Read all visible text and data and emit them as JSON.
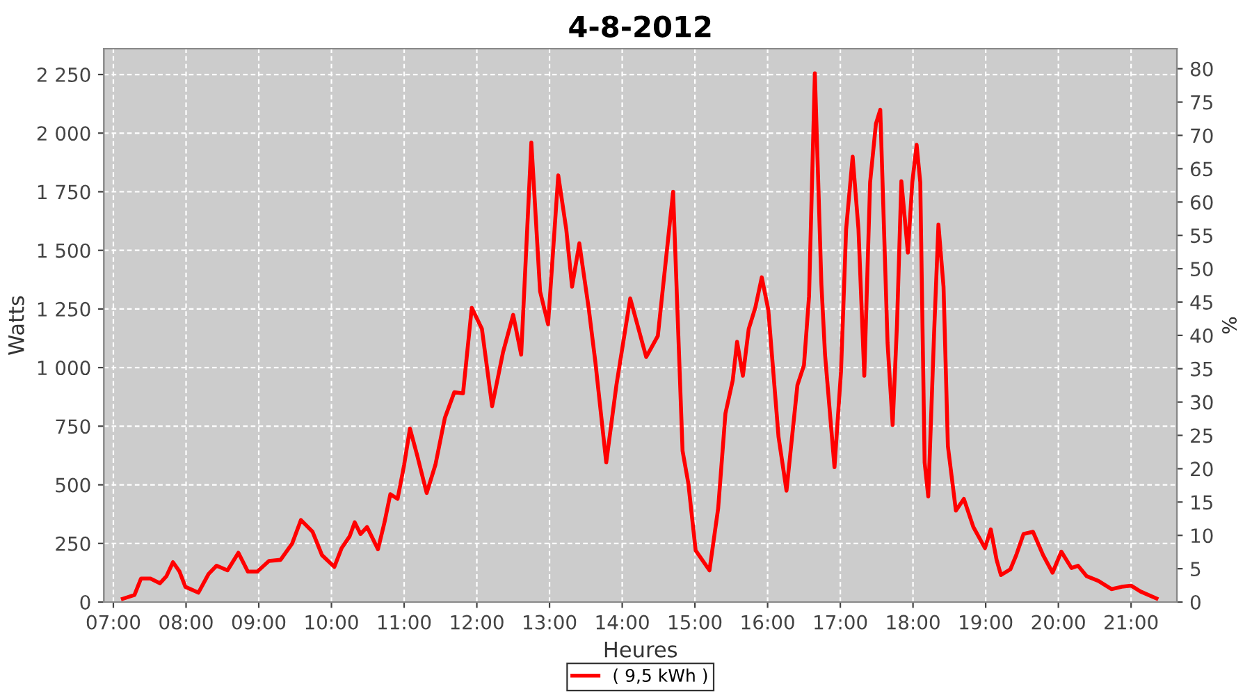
{
  "chart_data": {
    "type": "line",
    "title": "4-8-2012",
    "xlabel": "Heures",
    "ylabel": "Watts",
    "y2label": "%",
    "series": [
      {
        "name": "( 9,5 kWh )",
        "color": "#ff0000",
        "x": [
          7.13,
          7.29,
          7.38,
          7.51,
          7.64,
          7.73,
          7.82,
          7.91,
          7.99,
          8.17,
          8.31,
          8.42,
          8.57,
          8.72,
          8.85,
          8.98,
          9.14,
          9.3,
          9.46,
          9.58,
          9.74,
          9.87,
          10.04,
          10.14,
          10.25,
          10.32,
          10.4,
          10.49,
          10.64,
          10.73,
          10.81,
          10.91,
          11.0,
          11.08,
          11.18,
          11.31,
          11.43,
          11.56,
          11.69,
          11.81,
          11.93,
          12.07,
          12.21,
          12.36,
          12.5,
          12.61,
          12.75,
          12.87,
          12.98,
          13.12,
          13.23,
          13.31,
          13.41,
          13.54,
          13.63,
          13.78,
          13.92,
          14.11,
          14.33,
          14.49,
          14.7,
          14.83,
          14.91,
          15.01,
          15.2,
          15.32,
          15.42,
          15.52,
          15.58,
          15.66,
          15.74,
          15.83,
          15.92,
          16.01,
          16.15,
          16.26,
          16.41,
          16.5,
          16.57,
          16.65,
          16.74,
          16.79,
          16.92,
          17.01,
          17.08,
          17.17,
          17.25,
          17.33,
          17.41,
          17.49,
          17.55,
          17.65,
          17.72,
          17.78,
          17.84,
          17.93,
          17.99,
          18.05,
          18.1,
          18.16,
          18.21,
          18.29,
          18.35,
          18.42,
          18.48,
          18.59,
          18.7,
          18.83,
          18.99,
          19.07,
          19.15,
          19.21,
          19.34,
          19.42,
          19.52,
          19.65,
          19.79,
          19.92,
          20.04,
          20.18,
          20.27,
          20.39,
          20.55,
          20.73,
          20.87,
          21.0,
          21.13,
          21.35
        ],
        "values": [
          14,
          30,
          100,
          100,
          80,
          110,
          170,
          130,
          65,
          40,
          120,
          155,
          135,
          210,
          130,
          130,
          175,
          180,
          250,
          350,
          300,
          200,
          150,
          230,
          280,
          340,
          290,
          320,
          225,
          340,
          460,
          440,
          585,
          740,
          625,
          465,
          585,
          785,
          895,
          890,
          1255,
          1165,
          835,
          1065,
          1225,
          1055,
          1960,
          1325,
          1185,
          1820,
          1590,
          1345,
          1530,
          1250,
          1025,
          595,
          925,
          1295,
          1045,
          1135,
          1750,
          645,
          505,
          220,
          135,
          400,
          805,
          945,
          1110,
          965,
          1165,
          1255,
          1385,
          1245,
          705,
          475,
          925,
          1010,
          1305,
          2255,
          1355,
          1055,
          575,
          985,
          1590,
          1900,
          1590,
          965,
          1790,
          2040,
          2100,
          1105,
          755,
          1185,
          1795,
          1490,
          1790,
          1950,
          1790,
          595,
          450,
          1145,
          1610,
          1345,
          665,
          390,
          440,
          320,
          230,
          310,
          180,
          115,
          140,
          200,
          290,
          300,
          200,
          125,
          215,
          145,
          155,
          110,
          90,
          55,
          65,
          70,
          45,
          15
        ]
      }
    ],
    "xlim": [
      6.87,
      21.63
    ],
    "xticks": [
      {
        "value": 7,
        "label": "07:00"
      },
      {
        "value": 8,
        "label": "08:00"
      },
      {
        "value": 9,
        "label": "09:00"
      },
      {
        "value": 10,
        "label": "10:00"
      },
      {
        "value": 11,
        "label": "11:00"
      },
      {
        "value": 12,
        "label": "12:00"
      },
      {
        "value": 13,
        "label": "13:00"
      },
      {
        "value": 14,
        "label": "14:00"
      },
      {
        "value": 15,
        "label": "15:00"
      },
      {
        "value": 16,
        "label": "16:00"
      },
      {
        "value": 17,
        "label": "17:00"
      },
      {
        "value": 18,
        "label": "18:00"
      },
      {
        "value": 19,
        "label": "19:00"
      },
      {
        "value": 20,
        "label": "20:00"
      },
      {
        "value": 21,
        "label": "21:00"
      }
    ],
    "ylim": [
      0,
      2360
    ],
    "yticks": [
      0,
      250,
      500,
      750,
      {
        "value": 1000,
        "label": "1 000"
      },
      {
        "value": 1250,
        "label": "1 250"
      },
      {
        "value": 1500,
        "label": "1 500"
      },
      {
        "value": 1750,
        "label": "1 750"
      },
      {
        "value": 2000,
        "label": "2 000"
      },
      {
        "value": 2250,
        "label": "2 250"
      }
    ],
    "y2lim": [
      0,
      83
    ],
    "y2ticks": [
      0,
      5,
      10,
      15,
      20,
      25,
      30,
      35,
      40,
      45,
      50,
      55,
      60,
      65,
      70,
      75,
      80
    ],
    "grid": true,
    "legend": "bottom",
    "marker": "none",
    "line_style": "solid"
  }
}
